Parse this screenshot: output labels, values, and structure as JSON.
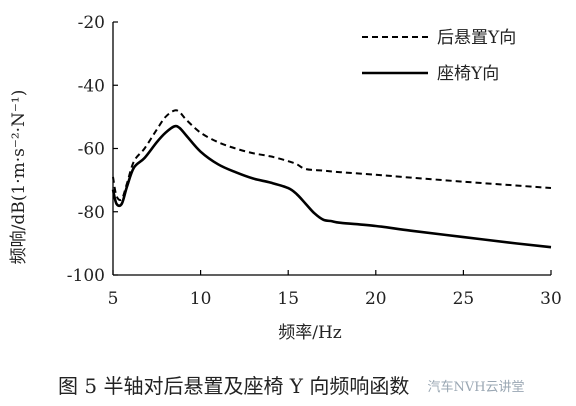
{
  "caption": "图 5   半轴对后悬置及座椅 Y 向频响函数",
  "watermark": "汽车NVH云讲堂",
  "chart_data": {
    "type": "line",
    "xlabel": "频率/Hz",
    "ylabel": "频响/dB(1·m·s⁻²·N⁻¹)",
    "xlim": [
      5,
      30
    ],
    "ylim": [
      -100,
      -20
    ],
    "xticks": [
      5,
      10,
      15,
      20,
      25,
      30
    ],
    "yticks": [
      -20,
      -40,
      -60,
      -80,
      -100
    ],
    "grid": false,
    "legend_position": "top-right",
    "series": [
      {
        "name": "后悬置Y向",
        "style": "dashed",
        "color": "#000000",
        "x": [
          5,
          5.2,
          5.5,
          5.8,
          6.2,
          6.8,
          7.5,
          8.0,
          8.5,
          8.8,
          9.2,
          10,
          11,
          12,
          13,
          14,
          15,
          15.5,
          16,
          17,
          18,
          20,
          22,
          25,
          28,
          30
        ],
        "y": [
          -69,
          -75,
          -76,
          -71,
          -64,
          -60,
          -54,
          -50,
          -48,
          -48.5,
          -51,
          -55,
          -58,
          -60,
          -61.5,
          -62.5,
          -64,
          -65,
          -66.5,
          -67,
          -67.5,
          -68.3,
          -69.2,
          -70.5,
          -71.7,
          -72.5
        ]
      },
      {
        "name": "座椅Y向",
        "style": "solid",
        "color": "#000000",
        "x": [
          5,
          5.2,
          5.5,
          5.8,
          6.2,
          6.8,
          7.5,
          8.0,
          8.5,
          8.8,
          9.2,
          10,
          11,
          12,
          13,
          14,
          15,
          15.5,
          16,
          16.5,
          17,
          17.5,
          18,
          20,
          22,
          25,
          28,
          30
        ],
        "y": [
          -73,
          -77.5,
          -77.5,
          -72,
          -66,
          -63,
          -58,
          -55,
          -53,
          -53.5,
          -56,
          -61,
          -65,
          -67.5,
          -69.5,
          -70.8,
          -72.5,
          -74.5,
          -77.5,
          -80.5,
          -82.5,
          -83,
          -83.5,
          -84.5,
          -86,
          -88,
          -90,
          -91.2
        ]
      }
    ]
  }
}
